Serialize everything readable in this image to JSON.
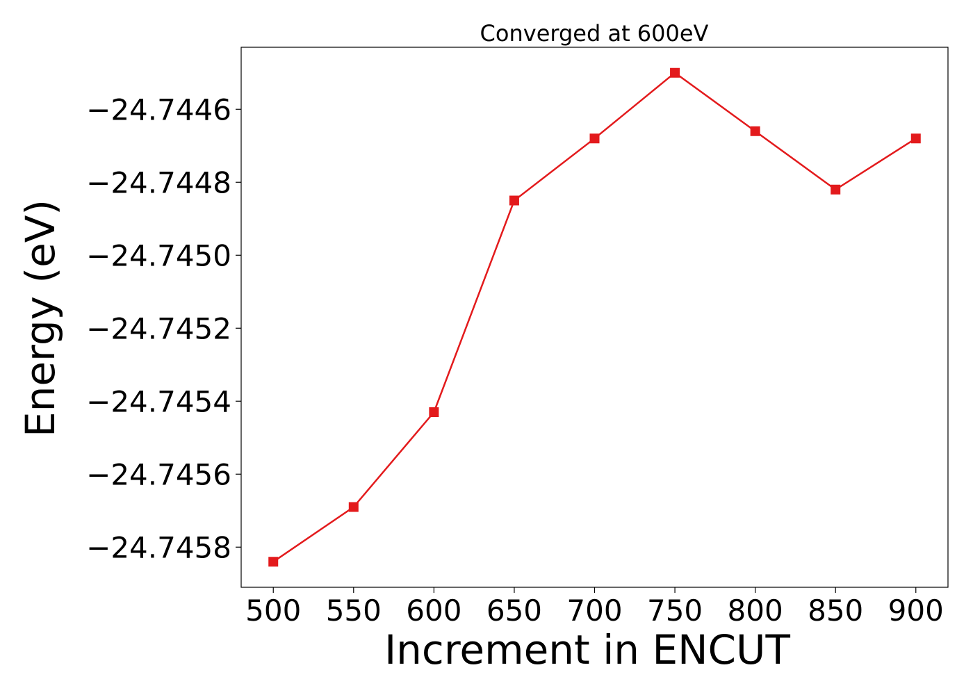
{
  "chart_data": {
    "type": "line",
    "title": "Converged at 600eV",
    "xlabel": "Increment in ENCUT",
    "ylabel": "Energy (eV)",
    "x": [
      500,
      550,
      600,
      650,
      700,
      750,
      800,
      850,
      900
    ],
    "series": [
      {
        "values": [
          -24.74584,
          -24.74569,
          -24.74543,
          -24.74485,
          -24.74468,
          -24.7445,
          -24.74466,
          -24.74482,
          -24.74468
        ],
        "color": "#e31a1c",
        "marker": "square"
      }
    ],
    "xticks": [
      500,
      550,
      600,
      650,
      700,
      750,
      800,
      850,
      900
    ],
    "yticks": [
      -24.7458,
      -24.7456,
      -24.7454,
      -24.7452,
      -24.745,
      -24.7448,
      -24.7446
    ],
    "ytick_labels": [
      "−24.7458",
      "−24.7456",
      "−24.7454",
      "−24.7452",
      "−24.7450",
      "−24.7448",
      "−24.7446"
    ],
    "xlim": [
      480,
      920
    ],
    "ylim": [
      -24.74591,
      -24.74443
    ],
    "grid": false,
    "legend": "none"
  }
}
